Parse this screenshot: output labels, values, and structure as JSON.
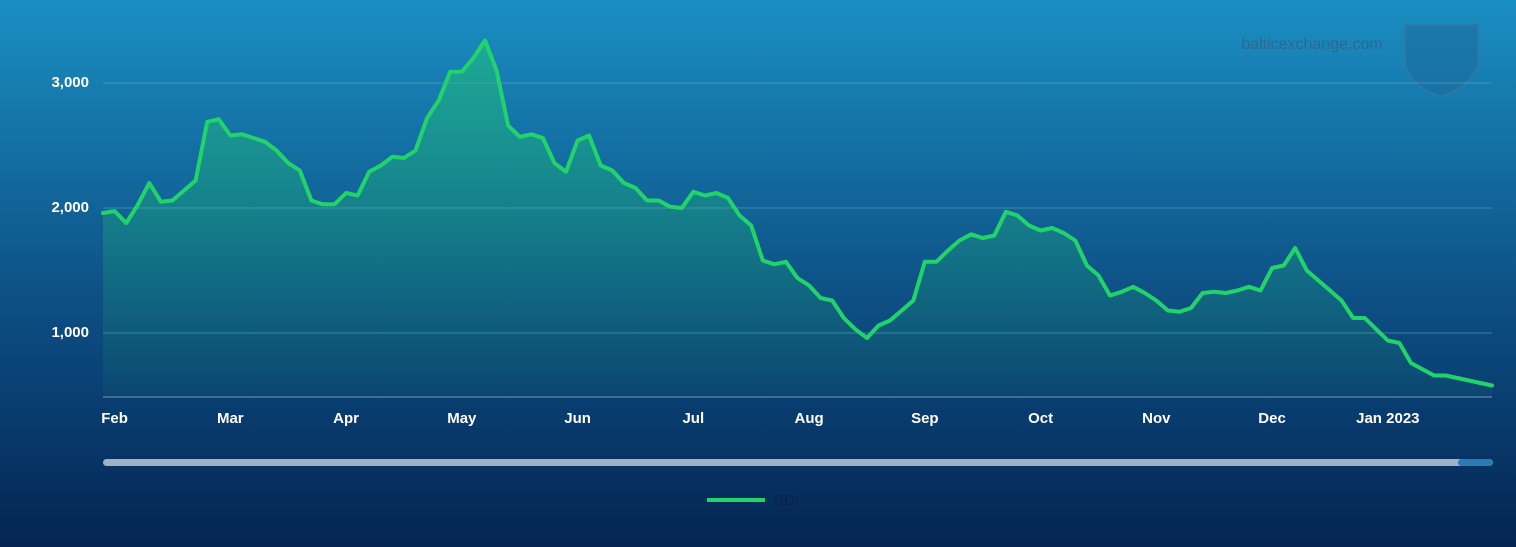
{
  "chart_data": {
    "type": "line",
    "watermark": "balticexchange.com",
    "categories": [
      null,
      "Feb",
      null,
      null,
      null,
      null,
      null,
      null,
      null,
      null,
      null,
      "Mar",
      null,
      null,
      null,
      null,
      null,
      null,
      null,
      null,
      null,
      "Apr",
      null,
      null,
      null,
      null,
      null,
      null,
      null,
      null,
      null,
      "May",
      null,
      null,
      null,
      null,
      null,
      null,
      null,
      null,
      null,
      "Jun",
      null,
      null,
      null,
      null,
      null,
      null,
      null,
      null,
      null,
      "Jul",
      null,
      null,
      null,
      null,
      null,
      null,
      null,
      null,
      null,
      "Aug",
      null,
      null,
      null,
      null,
      null,
      null,
      null,
      null,
      null,
      "Sep",
      null,
      null,
      null,
      null,
      null,
      null,
      null,
      null,
      null,
      "Oct",
      null,
      null,
      null,
      null,
      null,
      null,
      null,
      null,
      null,
      "Nov",
      null,
      null,
      null,
      null,
      null,
      null,
      null,
      null,
      null,
      "Dec",
      null,
      null,
      null,
      null,
      null,
      null,
      null,
      null,
      null,
      "Jan 2023",
      null,
      null,
      null,
      null,
      null,
      null,
      null,
      null,
      null
    ],
    "series": [
      {
        "name": "BDI",
        "color": "#22d36a",
        "values": [
          1960,
          1975,
          1880,
          2025,
          2200,
          2050,
          2060,
          2140,
          2220,
          2690,
          2710,
          2580,
          2590,
          2560,
          2530,
          2460,
          2360,
          2300,
          2060,
          2030,
          2030,
          2120,
          2100,
          2290,
          2340,
          2410,
          2400,
          2460,
          2720,
          2860,
          3090,
          3090,
          3200,
          3340,
          3100,
          2660,
          2570,
          2590,
          2560,
          2360,
          2290,
          2540,
          2580,
          2340,
          2300,
          2200,
          2160,
          2060,
          2060,
          2010,
          2000,
          2130,
          2100,
          2120,
          2080,
          1940,
          1860,
          1580,
          1550,
          1570,
          1440,
          1380,
          1280,
          1260,
          1120,
          1030,
          960,
          1060,
          1100,
          1180,
          1260,
          1570,
          1570,
          1660,
          1740,
          1790,
          1760,
          1780,
          1970,
          1940,
          1860,
          1820,
          1840,
          1800,
          1740,
          1540,
          1460,
          1300,
          1330,
          1370,
          1320,
          1260,
          1180,
          1170,
          1200,
          1320,
          1330,
          1320,
          1340,
          1370,
          1340,
          1520,
          1540,
          1680,
          1500,
          1420,
          1340,
          1260,
          1120,
          1120,
          1030,
          940,
          920,
          760,
          710,
          660,
          660,
          640,
          620,
          600,
          580
        ]
      }
    ],
    "ylim": [
      500,
      3500
    ],
    "yticks": [
      {
        "value": 1000,
        "label": "1,000"
      },
      {
        "value": 2000,
        "label": "2,000"
      },
      {
        "value": 3000,
        "label": "3,000"
      }
    ],
    "grid": true,
    "legend": "bottom"
  }
}
